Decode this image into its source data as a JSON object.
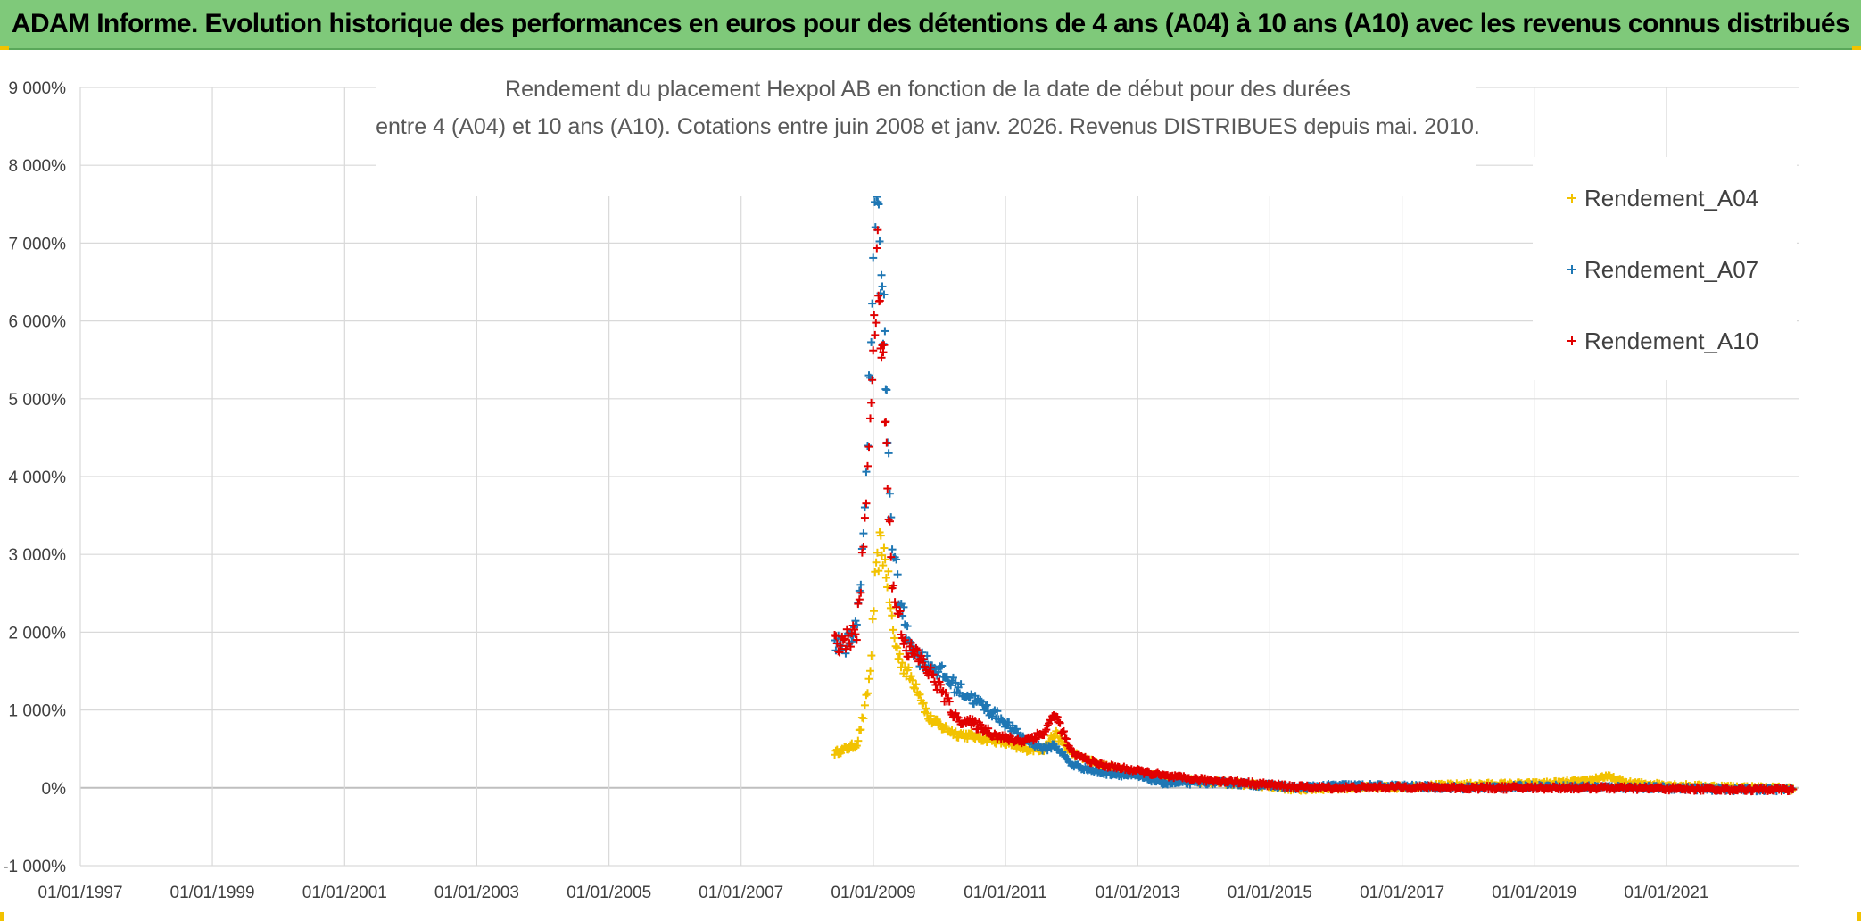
{
  "banner": {
    "title": "ADAM Informe. Evolution historique des performances en euros pour des détentions de 4 ans (A04) à 10 ans (A10) avec les revenus connus distribués"
  },
  "colors": {
    "banner_bg": "#7fc97a",
    "corner": "#f2c200",
    "gridline": "#d9d9d9",
    "zero_line": "#bfbfbf"
  },
  "chart_data": {
    "type": "scatter",
    "title_lines": [
      "Rendement du placement Hexpol AB en fonction de la date de début pour des durées",
      "entre 4 (A04) et 10 ans (A10). Cotations entre juin 2008 et janv. 2026. Revenus DISTRIBUES depuis mai. 2010."
    ],
    "xlim": [
      "1997-01-01",
      "2023-01-01"
    ],
    "ylim": [
      -1000,
      9000
    ],
    "x_ticks": [
      "01/01/1997",
      "01/01/1999",
      "01/01/2001",
      "01/01/2003",
      "01/01/2005",
      "01/01/2007",
      "01/01/2009",
      "01/01/2011",
      "01/01/2013",
      "01/01/2015",
      "01/01/2017",
      "01/01/2019",
      "01/01/2021"
    ],
    "y_ticks": [
      "-1 000%",
      "0%",
      "1 000%",
      "2 000%",
      "3 000%",
      "4 000%",
      "5 000%",
      "6 000%",
      "7 000%",
      "8 000%",
      "9 000%"
    ],
    "y_tick_values": [
      -1000,
      0,
      1000,
      2000,
      3000,
      4000,
      5000,
      6000,
      7000,
      8000,
      9000
    ],
    "grid": true,
    "legend_position": "top-right",
    "marker": "+",
    "series": [
      {
        "name": "Rendement_A04",
        "color": "#f2c200",
        "points": [
          [
            "2008-06-01",
            450
          ],
          [
            "2008-08-01",
            500
          ],
          [
            "2008-10-01",
            560
          ],
          [
            "2008-11-15",
            1000
          ],
          [
            "2008-12-15",
            1500
          ],
          [
            "2009-01-10",
            2600
          ],
          [
            "2009-02-05",
            3100
          ],
          [
            "2009-03-01",
            3000
          ],
          [
            "2009-03-25",
            2600
          ],
          [
            "2009-04-20",
            2000
          ],
          [
            "2009-05-20",
            1700
          ],
          [
            "2009-07-01",
            1500
          ],
          [
            "2009-09-01",
            1300
          ],
          [
            "2009-11-01",
            900
          ],
          [
            "2010-01-01",
            800
          ],
          [
            "2010-04-01",
            700
          ],
          [
            "2010-08-01",
            650
          ],
          [
            "2010-12-01",
            600
          ],
          [
            "2011-04-01",
            500
          ],
          [
            "2011-08-01",
            500
          ],
          [
            "2011-10-01",
            700
          ],
          [
            "2012-01-01",
            450
          ],
          [
            "2012-06-01",
            300
          ],
          [
            "2013-01-01",
            180
          ],
          [
            "2013-06-01",
            130
          ],
          [
            "2014-01-01",
            80
          ],
          [
            "2014-06-01",
            60
          ],
          [
            "2015-01-01",
            20
          ],
          [
            "2015-06-01",
            -20
          ],
          [
            "2016-01-01",
            0
          ],
          [
            "2017-01-01",
            10
          ],
          [
            "2018-01-01",
            40
          ],
          [
            "2019-01-01",
            50
          ],
          [
            "2019-10-01",
            80
          ],
          [
            "2020-02-01",
            150
          ],
          [
            "2020-06-01",
            60
          ],
          [
            "2021-06-01",
            20
          ],
          [
            "2022-06-01",
            0
          ],
          [
            "2022-12-01",
            -10
          ]
        ]
      },
      {
        "name": "Rendement_A07",
        "color": "#1f77b4",
        "points": [
          [
            "2008-06-01",
            1900
          ],
          [
            "2008-08-01",
            1800
          ],
          [
            "2008-10-01",
            2100
          ],
          [
            "2008-11-15",
            3500
          ],
          [
            "2008-12-15",
            5500
          ],
          [
            "2009-01-05",
            7300
          ],
          [
            "2009-01-20",
            7900
          ],
          [
            "2009-02-10",
            6500
          ],
          [
            "2009-03-01",
            6000
          ],
          [
            "2009-03-20",
            4500
          ],
          [
            "2009-04-15",
            3200
          ],
          [
            "2009-05-15",
            2600
          ],
          [
            "2009-07-01",
            2000
          ],
          [
            "2009-09-01",
            1700
          ],
          [
            "2009-11-01",
            1600
          ],
          [
            "2010-01-01",
            1500
          ],
          [
            "2010-04-01",
            1300
          ],
          [
            "2010-08-01",
            1100
          ],
          [
            "2010-12-01",
            900
          ],
          [
            "2011-04-01",
            650
          ],
          [
            "2011-08-01",
            500
          ],
          [
            "2011-10-01",
            550
          ],
          [
            "2012-01-01",
            300
          ],
          [
            "2012-06-01",
            200
          ],
          [
            "2013-01-01",
            150
          ],
          [
            "2013-06-01",
            60
          ],
          [
            "2014-01-01",
            70
          ],
          [
            "2014-06-01",
            60
          ],
          [
            "2015-01-01",
            30
          ],
          [
            "2015-06-01",
            0
          ],
          [
            "2016-01-01",
            30
          ],
          [
            "2017-01-01",
            20
          ],
          [
            "2018-01-01",
            0
          ],
          [
            "2019-01-01",
            20
          ],
          [
            "2020-01-01",
            10
          ],
          [
            "2021-01-01",
            0
          ],
          [
            "2022-01-01",
            -20
          ],
          [
            "2022-12-01",
            -20
          ]
        ]
      },
      {
        "name": "Rendement_A10",
        "color": "#e00000",
        "points": [
          [
            "2008-06-01",
            1850
          ],
          [
            "2008-08-01",
            1900
          ],
          [
            "2008-10-01",
            2000
          ],
          [
            "2008-11-15",
            3300
          ],
          [
            "2008-12-15",
            5000
          ],
          [
            "2009-01-05",
            5700
          ],
          [
            "2009-01-25",
            6800
          ],
          [
            "2009-02-10",
            5800
          ],
          [
            "2009-03-01",
            5400
          ],
          [
            "2009-03-20",
            4000
          ],
          [
            "2009-04-15",
            2600
          ],
          [
            "2009-05-15",
            2300
          ],
          [
            "2009-07-01",
            1800
          ],
          [
            "2009-09-01",
            1700
          ],
          [
            "2009-11-01",
            1500
          ],
          [
            "2010-01-01",
            1300
          ],
          [
            "2010-04-01",
            900
          ],
          [
            "2010-08-01",
            800
          ],
          [
            "2010-12-01",
            650
          ],
          [
            "2011-04-01",
            600
          ],
          [
            "2011-08-01",
            700
          ],
          [
            "2011-10-01",
            950
          ],
          [
            "2012-01-01",
            450
          ],
          [
            "2012-06-01",
            300
          ],
          [
            "2013-01-01",
            220
          ],
          [
            "2013-06-01",
            150
          ],
          [
            "2014-01-01",
            100
          ],
          [
            "2014-06-01",
            80
          ],
          [
            "2015-01-01",
            40
          ],
          [
            "2015-06-01",
            10
          ],
          [
            "2016-01-01",
            0
          ],
          [
            "2017-01-01",
            10
          ],
          [
            "2018-01-01",
            0
          ],
          [
            "2019-01-01",
            0
          ],
          [
            "2020-01-01",
            0
          ],
          [
            "2021-01-01",
            -10
          ],
          [
            "2022-01-01",
            -20
          ],
          [
            "2022-12-01",
            -20
          ]
        ]
      }
    ]
  }
}
